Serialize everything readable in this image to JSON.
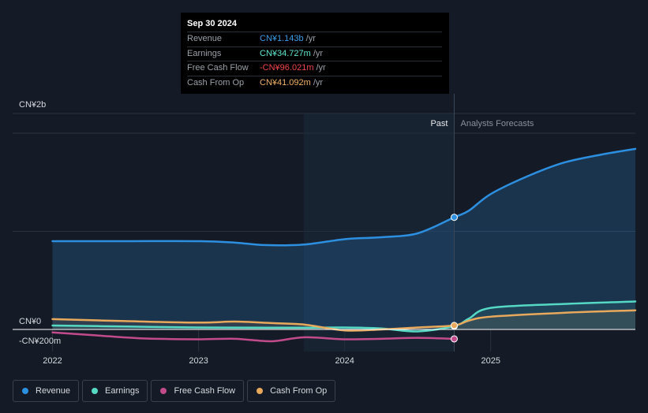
{
  "tooltip": {
    "date": "Sep 30 2024",
    "rows": [
      {
        "label": "Revenue",
        "value": "CN¥1.143b",
        "unit": "/yr",
        "color": "#3b9ce6"
      },
      {
        "label": "Earnings",
        "value": "CN¥34.727m",
        "unit": "/yr",
        "color": "#5ee8cf"
      },
      {
        "label": "Free Cash Flow",
        "value": "-CN¥96.021m",
        "unit": "/yr",
        "color": "#f0444c"
      },
      {
        "label": "Cash From Op",
        "value": "CN¥41.092m",
        "unit": "/yr",
        "color": "#f0b266"
      }
    ]
  },
  "legend": [
    {
      "label": "Revenue",
      "color": "#2d8fe0"
    },
    {
      "label": "Earnings",
      "color": "#55d9c4"
    },
    {
      "label": "Free Cash Flow",
      "color": "#c24b8c"
    },
    {
      "label": "Cash From Op",
      "color": "#e8a95c"
    }
  ],
  "chart_data": {
    "type": "line",
    "title": "",
    "xlabel": "",
    "ylabel": "",
    "ylim": [
      -200,
      2000
    ],
    "xlim": [
      2021.9,
      2025.99
    ],
    "y_tick_labels": [
      {
        "value": 2000,
        "label": "CN¥2b"
      },
      {
        "value": 0,
        "label": "CN¥0"
      },
      {
        "value": -200,
        "label": "-CN¥200m"
      }
    ],
    "x_ticks": [
      {
        "value": 2022,
        "label": "2022"
      },
      {
        "value": 2023,
        "label": "2023"
      },
      {
        "value": 2024,
        "label": "2024"
      },
      {
        "value": 2025,
        "label": "2025"
      }
    ],
    "past_label": "Past",
    "forecast_label": "Analysts Forecasts",
    "divider_x": 2024.75,
    "highlight_start_x": 2023.72,
    "units": "CN¥ millions",
    "series": [
      {
        "name": "Revenue",
        "color": "#2d8fe0",
        "fill": true,
        "x": [
          2022.0,
          2022.5,
          2023.0,
          2023.25,
          2023.45,
          2023.72,
          2024.0,
          2024.25,
          2024.5,
          2024.75,
          2024.85,
          2025.0,
          2025.25,
          2025.5,
          2025.75,
          2025.99
        ],
        "y": [
          900,
          900,
          900,
          885,
          860,
          865,
          920,
          940,
          980,
          1143,
          1210,
          1380,
          1560,
          1700,
          1780,
          1840
        ]
      },
      {
        "name": "Earnings",
        "color": "#55d9c4",
        "fill": true,
        "x": [
          2022.0,
          2022.5,
          2023.0,
          2023.5,
          2023.72,
          2024.0,
          2024.25,
          2024.5,
          2024.75,
          2024.85,
          2025.0,
          2025.5,
          2025.99
        ],
        "y": [
          40,
          30,
          20,
          18,
          18,
          20,
          10,
          -20,
          34.727,
          110,
          220,
          260,
          285
        ]
      },
      {
        "name": "Free Cash Flow",
        "color": "#c24b8c",
        "fill": false,
        "x": [
          2022.0,
          2022.3,
          2022.6,
          2023.0,
          2023.25,
          2023.5,
          2023.72,
          2024.0,
          2024.25,
          2024.5,
          2024.75
        ],
        "y": [
          -30,
          -60,
          -90,
          -100,
          -95,
          -120,
          -80,
          -100,
          -95,
          -85,
          -96.021
        ]
      },
      {
        "name": "Cash From Op",
        "color": "#e8a95c",
        "fill": true,
        "x": [
          2022.0,
          2022.5,
          2023.0,
          2023.25,
          2023.5,
          2023.72,
          2024.0,
          2024.25,
          2024.5,
          2024.75,
          2024.85,
          2025.0,
          2025.5,
          2025.99
        ],
        "y": [
          105,
          85,
          70,
          80,
          65,
          50,
          -10,
          0,
          20,
          41.092,
          90,
          130,
          170,
          195
        ]
      }
    ]
  }
}
